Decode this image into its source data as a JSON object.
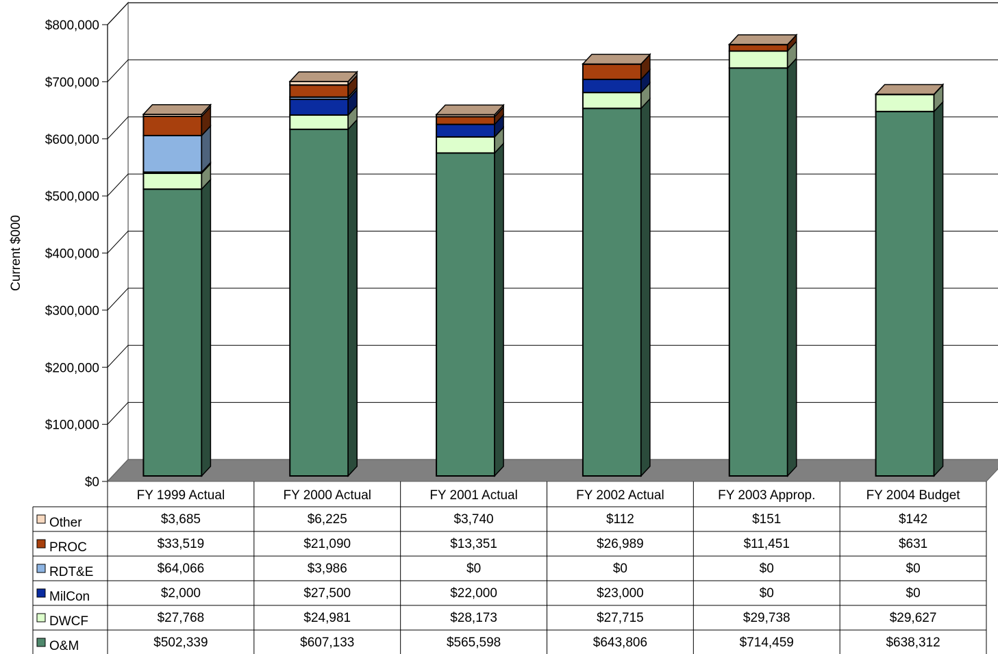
{
  "chart_data": {
    "type": "bar",
    "stacked": true,
    "three_d": true,
    "title": "",
    "ylabel": "Current $000",
    "xlabel": "",
    "ylim": [
      0,
      800000
    ],
    "y_ticks": [
      0,
      100000,
      200000,
      300000,
      400000,
      500000,
      600000,
      700000,
      800000
    ],
    "y_tick_labels": [
      "$0",
      "$100,000",
      "$200,000",
      "$300,000",
      "$400,000",
      "$500,000",
      "$600,000",
      "$700,000",
      "$800,000"
    ],
    "grid": true,
    "legend_placement": "data-table-left",
    "categories": [
      "FY 1999 Actual",
      "FY 2000 Actual",
      "FY 2001 Actual",
      "FY 2002 Actual",
      "FY 2003 Approp.",
      "FY 2004 Budget"
    ],
    "series": [
      {
        "name": "O&M",
        "color": "#4F886C",
        "values": [
          502339,
          607133,
          565598,
          643806,
          714459,
          638312
        ],
        "labels": [
          "$502,339",
          "$607,133",
          "$565,598",
          "$643,806",
          "$714,459",
          "$638,312"
        ]
      },
      {
        "name": "DWCF",
        "color": "#DDFFCC",
        "values": [
          27768,
          24981,
          28173,
          27715,
          29738,
          29627
        ],
        "labels": [
          "$27,768",
          "$24,981",
          "$28,173",
          "$27,715",
          "$29,738",
          "$29,627"
        ]
      },
      {
        "name": "MilCon",
        "color": "#0A2CA0",
        "values": [
          2000,
          27500,
          22000,
          23000,
          0,
          0
        ],
        "labels": [
          "$2,000",
          "$27,500",
          "$22,000",
          "$23,000",
          "$0",
          "$0"
        ]
      },
      {
        "name": "RDT&E",
        "color": "#8DB4E2",
        "values": [
          64066,
          3986,
          0,
          0,
          0,
          0
        ],
        "labels": [
          "$64,066",
          "$3,986",
          "$0",
          "$0",
          "$0",
          "$0"
        ]
      },
      {
        "name": "PROC",
        "color": "#A8400D",
        "values": [
          33519,
          21090,
          13351,
          26989,
          11451,
          631
        ],
        "labels": [
          "$33,519",
          "$21,090",
          "$13,351",
          "$26,989",
          "$11,451",
          "$631"
        ]
      },
      {
        "name": "Other",
        "color": "#F7D9C0",
        "values": [
          3685,
          6225,
          3740,
          112,
          151,
          142
        ],
        "labels": [
          "$3,685",
          "$6,225",
          "$3,740",
          "$112",
          "$151",
          "$142"
        ]
      }
    ],
    "table_row_order": [
      "Other",
      "PROC",
      "RDT&E",
      "MilCon",
      "DWCF",
      "O&M"
    ],
    "colors": {
      "floor": "#808080",
      "grid": "#000000",
      "top_cap": "#B89A80"
    }
  }
}
